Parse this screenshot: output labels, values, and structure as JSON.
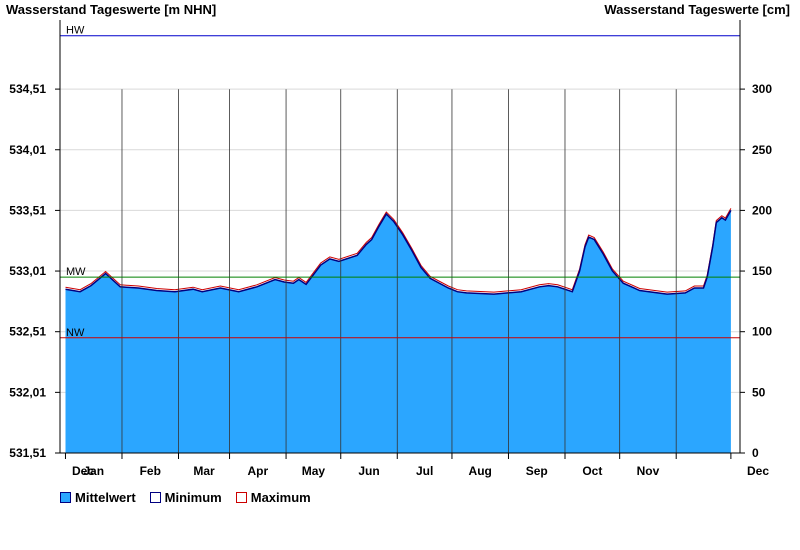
{
  "chart_data": {
    "type": "area",
    "title_left": "Wasserstand Tageswerte [m NHN]",
    "title_right": "Wasserstand Tageswerte [cm]",
    "y_left": {
      "ticks": [
        "531,51",
        "532,01",
        "532,51",
        "533,01",
        "533,51",
        "534,01",
        "534,51"
      ],
      "range": [
        531.51,
        534.95
      ]
    },
    "y_right": {
      "ticks": [
        "0",
        "50",
        "100",
        "150",
        "200",
        "250",
        "300"
      ],
      "range": [
        0,
        344
      ]
    },
    "x_months": [
      "Dec",
      "Jan",
      "Feb",
      "Mar",
      "Apr",
      "May",
      "Jun",
      "Jul",
      "Aug",
      "Sep",
      "Oct",
      "Nov",
      "Dec"
    ],
    "reference_lines": [
      {
        "label": "HW",
        "value": 344,
        "color": "#0000cc"
      },
      {
        "label": "MW",
        "value": 145,
        "color": "#008000"
      },
      {
        "label": "NW",
        "value": 95,
        "color": "#cc0000"
      }
    ],
    "series": [
      {
        "name": "Mittelwert",
        "color": "#2ba6ff",
        "type": "area"
      },
      {
        "name": "Minimum",
        "color": "#000080",
        "type": "line"
      },
      {
        "name": "Maximum",
        "color": "#cc0000",
        "type": "line"
      }
    ],
    "x_day": [
      0,
      8,
      14,
      22,
      30,
      40,
      50,
      60,
      70,
      75,
      85,
      95,
      105,
      115,
      120,
      125,
      128,
      132,
      140,
      145,
      150,
      160,
      165,
      168,
      172,
      176,
      180,
      185,
      190,
      195,
      200,
      210,
      215,
      220,
      235,
      250,
      260,
      265,
      270,
      278,
      282,
      285,
      287,
      290,
      295,
      300,
      306,
      315,
      330,
      340,
      345,
      350,
      352,
      355,
      357,
      360,
      362,
      365
    ],
    "values_cm": [
      135,
      133,
      138,
      148,
      137,
      136,
      134,
      133,
      135,
      133,
      136,
      133,
      137,
      143,
      141,
      140,
      143,
      139,
      155,
      160,
      158,
      163,
      172,
      176,
      187,
      197,
      191,
      180,
      167,
      153,
      144,
      136,
      133,
      132,
      131,
      133,
      137,
      138,
      137,
      133,
      150,
      170,
      178,
      176,
      164,
      150,
      140,
      134,
      131,
      132,
      136,
      136,
      145,
      170,
      190,
      194,
      192,
      200
    ],
    "legend": [
      "Mittelwert",
      "Minimum",
      "Maximum"
    ]
  }
}
